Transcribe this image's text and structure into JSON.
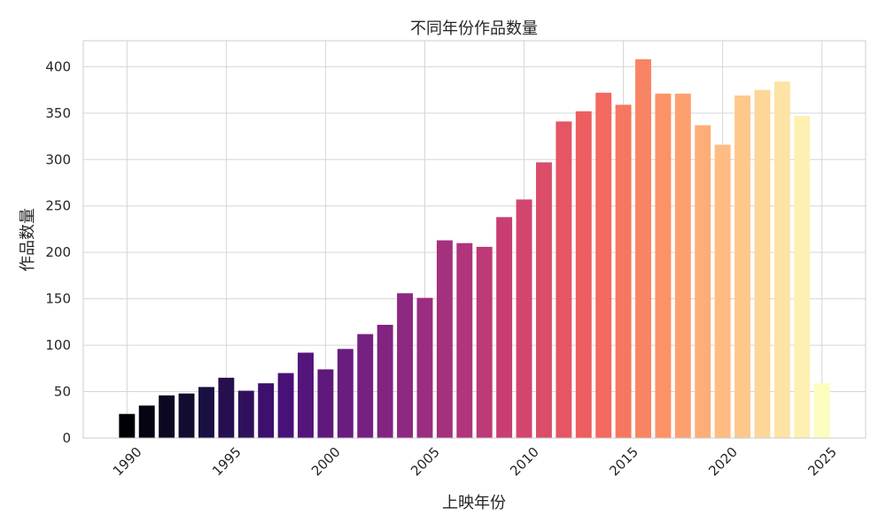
{
  "chart_data": {
    "type": "bar",
    "title": "不同年份作品数量",
    "xlabel": "上映年份",
    "ylabel": "作品数量",
    "x": [
      1990,
      1991,
      1992,
      1993,
      1994,
      1995,
      1996,
      1997,
      1998,
      1999,
      2000,
      2001,
      2002,
      2003,
      2004,
      2005,
      2006,
      2007,
      2008,
      2009,
      2010,
      2011,
      2012,
      2013,
      2014,
      2015,
      2016,
      2017,
      2018,
      2019,
      2020,
      2021,
      2022,
      2023,
      2024,
      2025
    ],
    "values": [
      26,
      35,
      46,
      48,
      55,
      65,
      51,
      59,
      70,
      92,
      74,
      96,
      112,
      122,
      156,
      151,
      213,
      210,
      206,
      238,
      257,
      297,
      341,
      352,
      372,
      359,
      408,
      371,
      371,
      337,
      316,
      369,
      375,
      384,
      347,
      59
    ],
    "xticks": [
      1990,
      1995,
      2000,
      2005,
      2010,
      2015,
      2020,
      2025
    ],
    "yticks": [
      0,
      50,
      100,
      150,
      200,
      250,
      300,
      350,
      400
    ],
    "xlim": [
      1987.8,
      2027.2
    ],
    "ylim": [
      0,
      428
    ],
    "grid": true,
    "colormap": "magma",
    "colormap_stops": [
      "#000004",
      "#180f3e",
      "#451077",
      "#721f81",
      "#9f2f7f",
      "#cd4071",
      "#f1605d",
      "#fd9567",
      "#feca8d",
      "#fcfdbf"
    ]
  }
}
